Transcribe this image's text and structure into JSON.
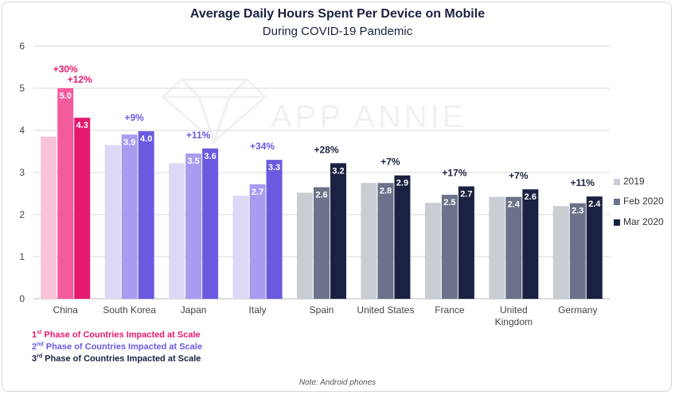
{
  "chart_data": {
    "type": "bar",
    "title": "Average Daily Hours Spent Per Device on Mobile",
    "subtitle": "During COVID-19 Pandemic",
    "ylim": [
      0,
      6
    ],
    "yticks": [
      "0",
      "1",
      "2",
      "3",
      "4",
      "5",
      "6"
    ],
    "categories": [
      "China",
      "South Korea",
      "Japan",
      "Italy",
      "Spain",
      "United States",
      "France",
      "United\nKingdom",
      "Germany"
    ],
    "series": [
      {
        "name": "2019",
        "values": [
          3.85,
          3.65,
          3.22,
          2.45,
          2.52,
          2.75,
          2.28,
          2.42,
          2.2
        ],
        "labels": [
          "",
          "",
          "",
          "",
          "",
          "",
          "",
          "",
          ""
        ]
      },
      {
        "name": "Feb 2020",
        "values": [
          5.0,
          3.9,
          3.45,
          2.72,
          2.65,
          2.75,
          2.47,
          2.42,
          2.27
        ],
        "labels": [
          "5.0",
          "3.9",
          "3.5",
          "2.7",
          "2.6",
          "2.8",
          "2.5",
          "2.4",
          "2.3"
        ]
      },
      {
        "name": "Mar 2020",
        "values": [
          4.3,
          3.98,
          3.57,
          3.3,
          3.22,
          2.93,
          2.67,
          2.6,
          2.43
        ],
        "labels": [
          "4.3",
          "4.0",
          "3.6",
          "3.3",
          "3.2",
          "2.9",
          "2.7",
          "2.6",
          "2.4"
        ]
      }
    ],
    "annotations": [
      {
        "category": 0,
        "text": "+30%",
        "anchor": "Feb 2020",
        "color": "#e5196f"
      },
      {
        "category": 0,
        "text": "+12%",
        "anchor": "Mar 2020",
        "color": "#e5196f"
      },
      {
        "category": 1,
        "text": "+9%",
        "anchor": "Mar 2020",
        "color": "#6a5ae0"
      },
      {
        "category": 2,
        "text": "+11%",
        "anchor": "Mar 2020",
        "color": "#6a5ae0"
      },
      {
        "category": 3,
        "text": "+34%",
        "anchor": "Mar 2020",
        "color": "#6a5ae0"
      },
      {
        "category": 4,
        "text": "+28%",
        "anchor": "Mar 2020",
        "color": "#1b2140"
      },
      {
        "category": 5,
        "text": "+7%",
        "anchor": "Mar 2020",
        "color": "#1b2140"
      },
      {
        "category": 6,
        "text": "+17%",
        "anchor": "Mar 2020",
        "color": "#1b2140"
      },
      {
        "category": 7,
        "text": "+7%",
        "anchor": "Mar 2020",
        "color": "#1b2140"
      },
      {
        "category": 8,
        "text": "+11%",
        "anchor": "Mar 2020",
        "color": "#1b2140"
      }
    ],
    "palettes": {
      "phase1": [
        "#f9c4d9",
        "#f45b9d",
        "#e5196f"
      ],
      "phase2": [
        "#dcd8f6",
        "#a99cf0",
        "#6a5ae0"
      ],
      "phase3": [
        "#c9ccd3",
        "#6b7289",
        "#1b2140"
      ]
    },
    "category_phase": [
      "phase1",
      "phase2",
      "phase2",
      "phase2",
      "phase3",
      "phase3",
      "phase3",
      "phase3",
      "phase3"
    ],
    "legend_colors": [
      "#c9ccd3",
      "#6b7289",
      "#1b2140"
    ],
    "legend_placement": "right",
    "grid": true
  },
  "watermark": "APP ANNIE",
  "phases": [
    {
      "num": "1",
      "sup": "st",
      "text": " Phase of Countries Impacted at Scale",
      "color": "#e5196f"
    },
    {
      "num": "2",
      "sup": "nd",
      "text": " Phase of Countries Impacted at Scale",
      "color": "#6a5ae0"
    },
    {
      "num": "3",
      "sup": "rd",
      "text": " Phase of Countries Impacted at Scale",
      "color": "#1b2140"
    }
  ],
  "note": "Note: Android phones"
}
